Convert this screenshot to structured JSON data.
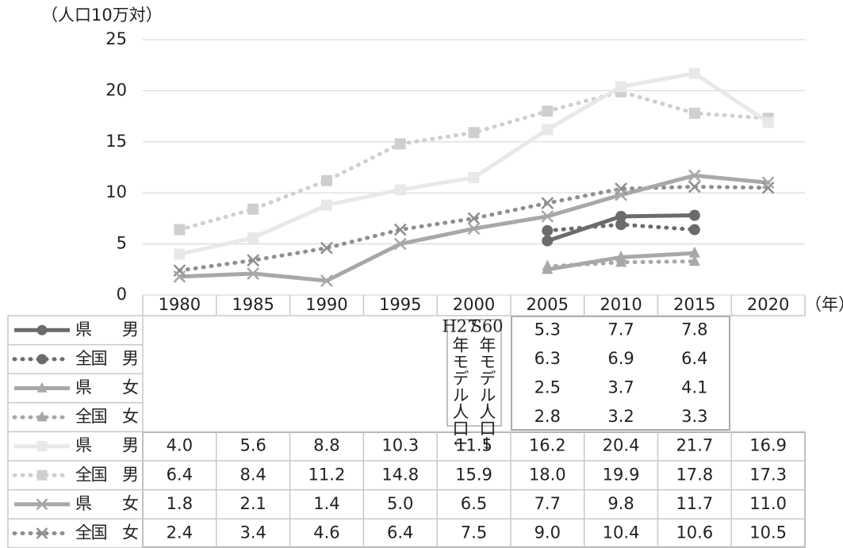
{
  "chart_data": {
    "type": "line",
    "y_unit": "（人口10万対）",
    "x_unit": "（年）",
    "categories": [
      "1980",
      "1985",
      "1990",
      "1995",
      "2000",
      "2005",
      "2010",
      "2015",
      "2020"
    ],
    "ylim": [
      0,
      25
    ],
    "yticks": [
      0,
      5,
      10,
      15,
      20,
      25
    ],
    "grid": true,
    "annotations": [
      {
        "label": "H27",
        "text": "年モデル人口↓"
      },
      {
        "label": "S60",
        "text": "年モデル人口→"
      }
    ],
    "series": [
      {
        "name": "県　男",
        "color": "#6b6b6b",
        "marker": "circle",
        "dotted": false,
        "values": [
          null,
          null,
          null,
          null,
          null,
          5.3,
          7.7,
          7.8,
          null
        ],
        "value_labels": [
          null,
          null,
          null,
          null,
          null,
          "5.3",
          "7.7",
          "7.8",
          null
        ]
      },
      {
        "name": "全国　男",
        "color": "#6b6b6b",
        "marker": "circle",
        "dotted": true,
        "values": [
          null,
          null,
          null,
          null,
          null,
          6.3,
          6.9,
          6.4,
          null
        ],
        "value_labels": [
          null,
          null,
          null,
          null,
          null,
          "6.3",
          "6.9",
          "6.4",
          null
        ]
      },
      {
        "name": "県　女",
        "color": "#a8a8a8",
        "marker": "triangle",
        "dotted": false,
        "values": [
          null,
          null,
          null,
          null,
          null,
          2.5,
          3.7,
          4.1,
          null
        ],
        "value_labels": [
          null,
          null,
          null,
          null,
          null,
          "2.5",
          "3.7",
          "4.1",
          null
        ]
      },
      {
        "name": "全国　女",
        "color": "#a8a8a8",
        "marker": "triangle",
        "dotted": true,
        "values": [
          null,
          null,
          null,
          null,
          null,
          2.8,
          3.2,
          3.3,
          null
        ],
        "value_labels": [
          null,
          null,
          null,
          null,
          null,
          "2.8",
          "3.2",
          "3.3",
          null
        ]
      },
      {
        "name": "県　男",
        "color": "#e8e8e8",
        "marker": "square",
        "dotted": false,
        "values": [
          4.0,
          5.6,
          8.8,
          10.3,
          11.5,
          16.2,
          20.4,
          21.7,
          16.9
        ],
        "value_labels": [
          "4.0",
          "5.6",
          "8.8",
          "10.3",
          "11.5",
          "16.2",
          "20.4",
          "21.7",
          "16.9"
        ]
      },
      {
        "name": "全国　男",
        "color": "#cfcfcf",
        "marker": "square",
        "dotted": true,
        "values": [
          6.4,
          8.4,
          11.2,
          14.8,
          15.9,
          18.0,
          19.9,
          17.8,
          17.3
        ],
        "value_labels": [
          "6.4",
          "8.4",
          "11.2",
          "14.8",
          "15.9",
          "18.0",
          "19.9",
          "17.8",
          "17.3"
        ]
      },
      {
        "name": "県　女",
        "color": "#a8a8a8",
        "marker": "x",
        "dotted": false,
        "values": [
          1.8,
          2.1,
          1.4,
          5.0,
          6.5,
          7.7,
          9.8,
          11.7,
          11.0
        ],
        "value_labels": [
          "1.8",
          "2.1",
          "1.4",
          "5.0",
          "6.5",
          "7.7",
          "9.8",
          "11.7",
          "11.0"
        ]
      },
      {
        "name": "全国　女",
        "color": "#8f8f8f",
        "marker": "x",
        "dotted": true,
        "values": [
          2.4,
          3.4,
          4.6,
          6.4,
          7.5,
          9.0,
          10.4,
          10.6,
          10.5
        ],
        "value_labels": [
          "2.4",
          "3.4",
          "4.6",
          "6.4",
          "7.5",
          "9.0",
          "10.4",
          "10.6",
          "10.5"
        ]
      }
    ]
  }
}
